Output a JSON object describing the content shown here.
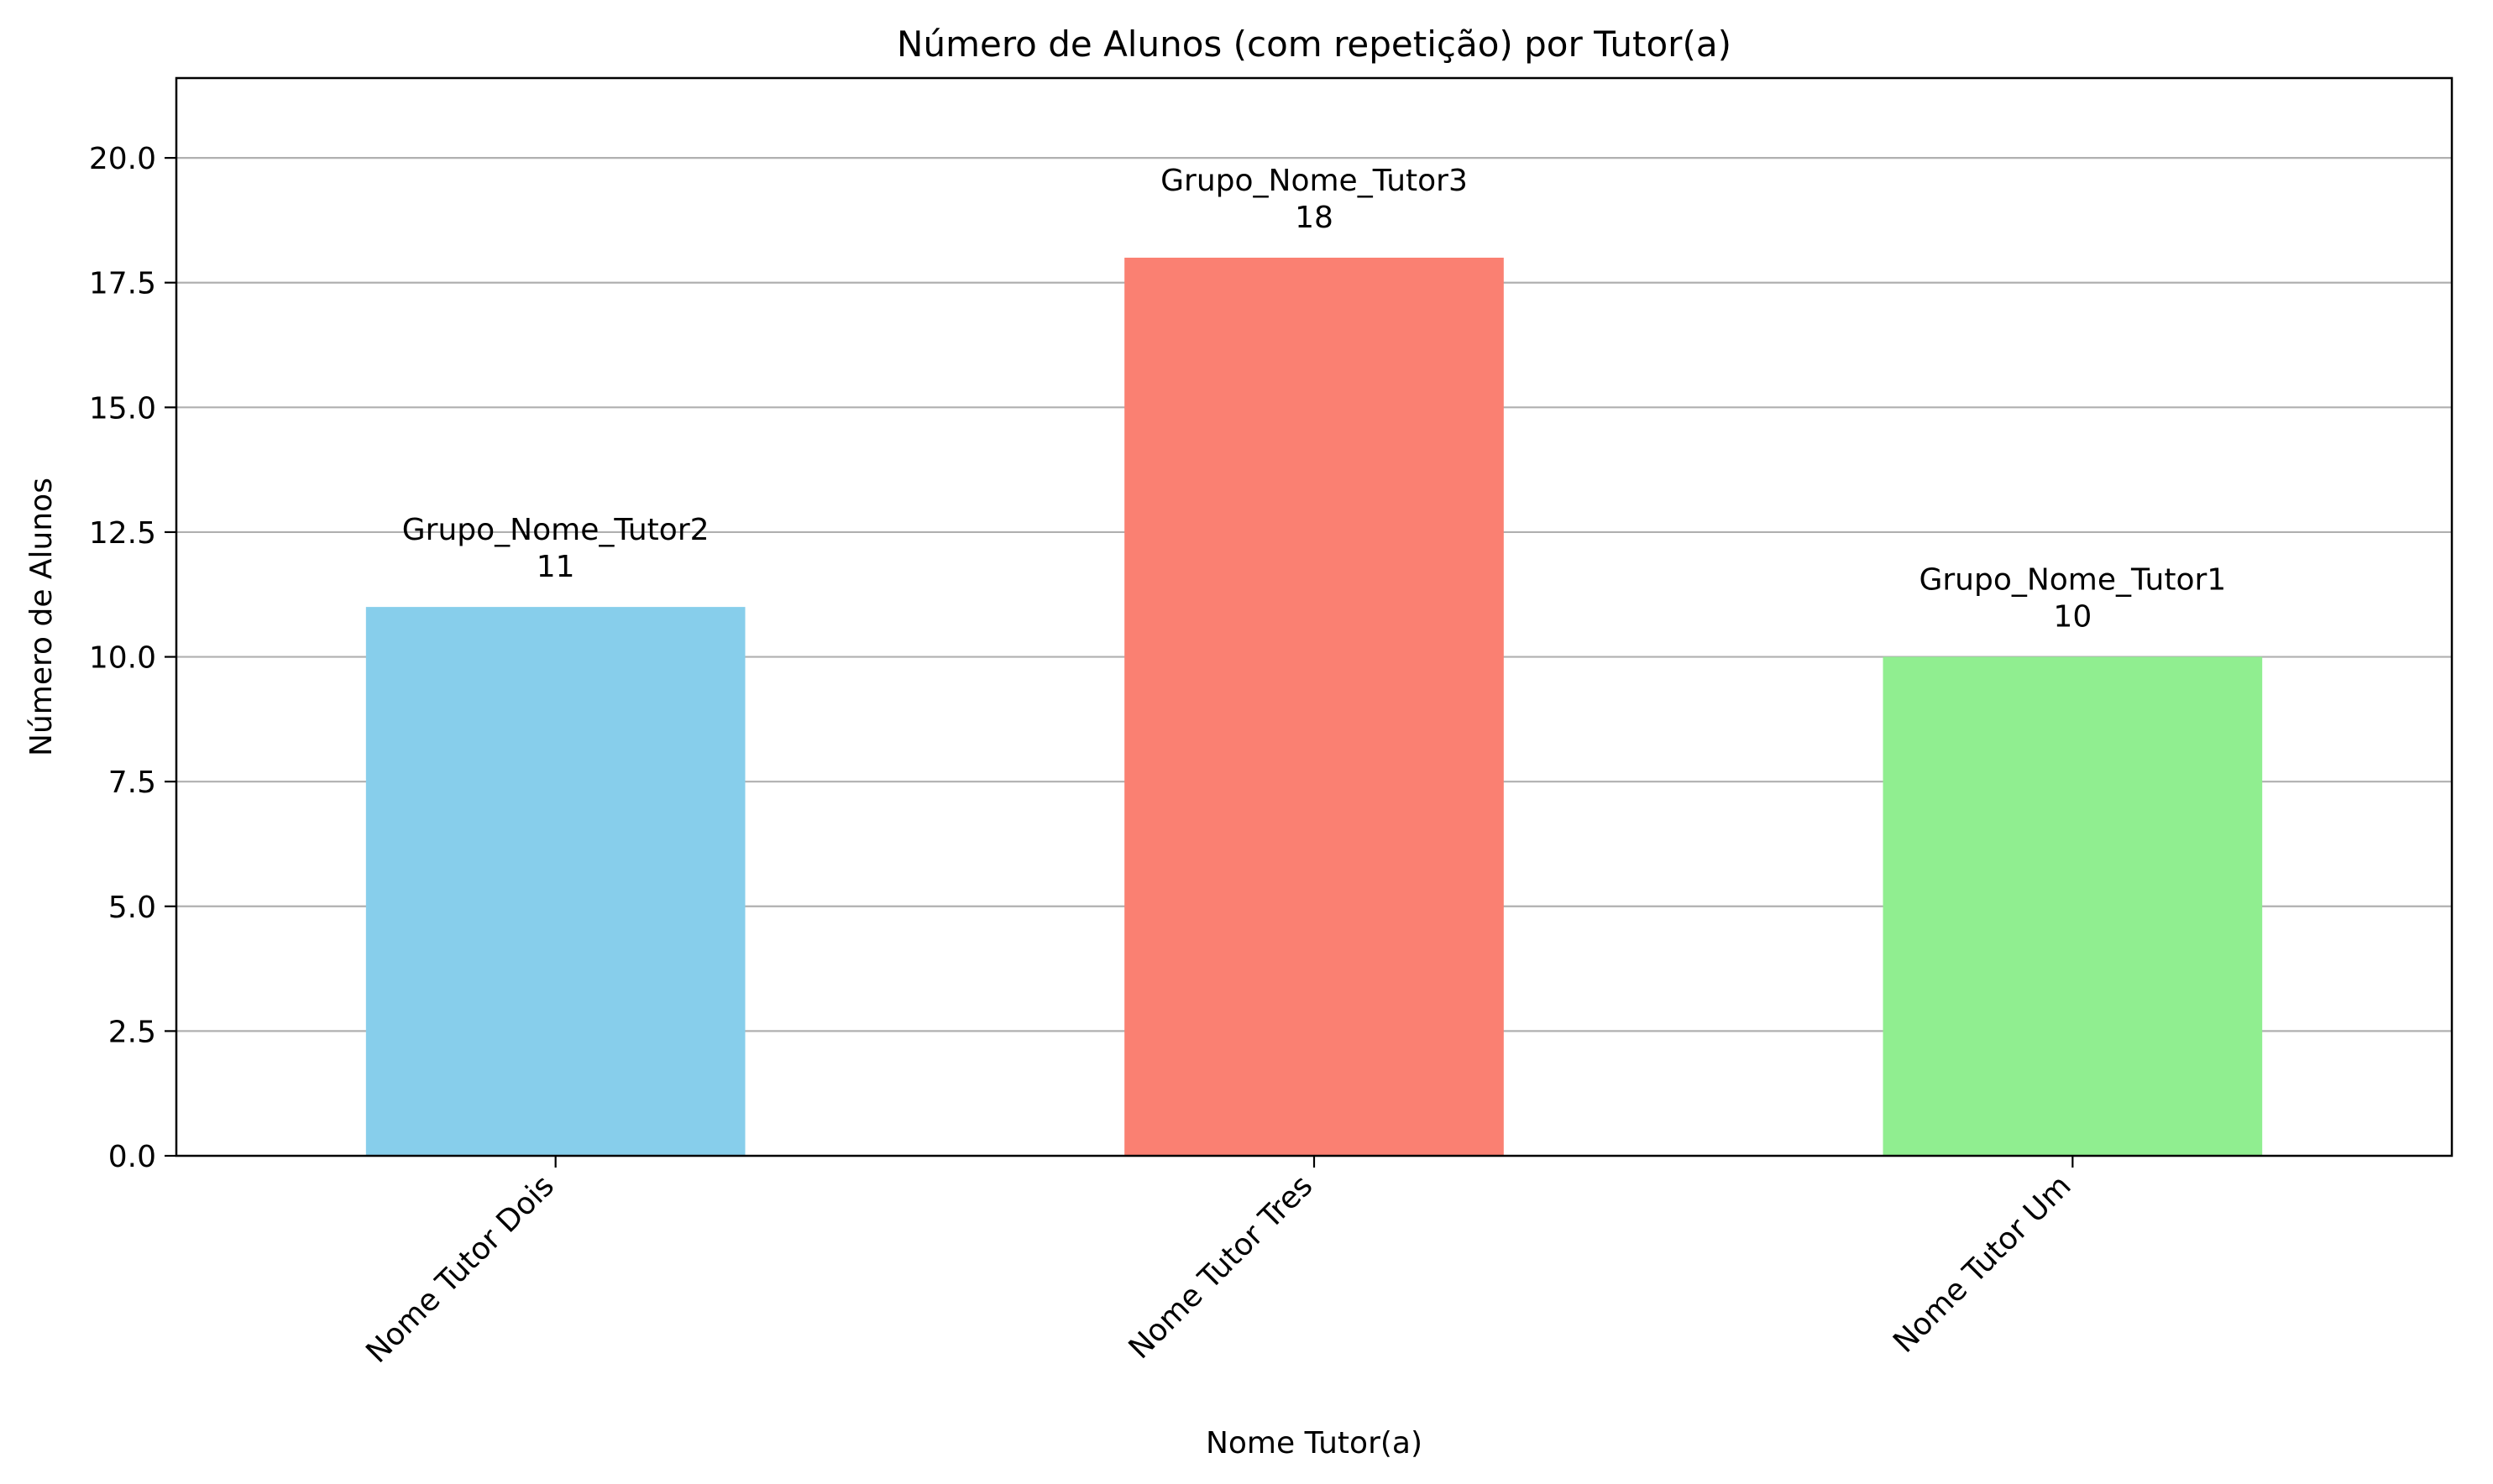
{
  "chart_data": {
    "type": "bar",
    "title": "Número de Alunos (com repetição) por Tutor(a)",
    "xlabel": "Nome Tutor(a)",
    "ylabel": "Número de Alunos",
    "categories": [
      "Nome Tutor Dois",
      "Nome Tutor Tres",
      "Nome Tutor Um"
    ],
    "values": [
      11,
      18,
      10
    ],
    "bar_labels": [
      "Grupo_Nome_Tutor2",
      "Grupo_Nome_Tutor3",
      "Grupo_Nome_Tutor1"
    ],
    "colors": [
      "#87ceeb",
      "#fa8072",
      "#90ee90"
    ],
    "ylim": [
      0,
      21.6
    ],
    "yticks": [
      0,
      2.5,
      5,
      7.5,
      10,
      12.5,
      15,
      17.5,
      20
    ],
    "ytick_labels": [
      "0.0",
      "2.5",
      "5.0",
      "7.5",
      "10.0",
      "12.5",
      "15.0",
      "17.5",
      "20.0"
    ],
    "grid": "y",
    "grid_color": "#b0b0b0",
    "legend": "none"
  }
}
